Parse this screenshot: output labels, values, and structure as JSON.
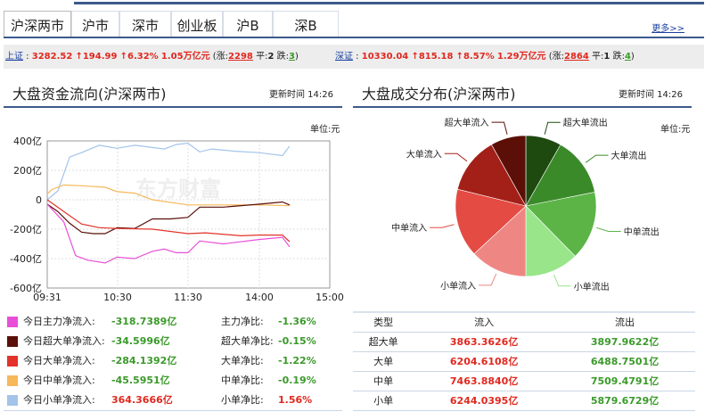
{
  "tabs": [
    "沪深两市",
    "沪市",
    "深市",
    "创业板",
    "沪B",
    "深B"
  ],
  "more": "更多>>",
  "ticker": {
    "sh": {
      "name": "上证",
      "value": "3282.52",
      "chg": "↑194.99",
      "pct": "↑6.32%",
      "amount": "1.05万亿元",
      "up_label": "涨:",
      "up": "2298",
      "flat_label": "平:",
      "flat": "2",
      "down_label": "跌:",
      "down": "3"
    },
    "sz": {
      "name": "深证",
      "value": "10330.04",
      "chg": "↑815.18",
      "pct": "↑8.57%",
      "amount": "1.29万亿元",
      "up_label": "涨:",
      "up": "2864",
      "flat_label": "平:",
      "flat": "1",
      "down_label": "跌:",
      "down": "4"
    }
  },
  "left": {
    "title": "大盘资金流向(沪深两市)",
    "updated": "更新时间 14:26",
    "unit": "单位:元",
    "legend": [
      {
        "label": "今日主力净流入:",
        "value": "-318.7389亿",
        "ratio_label": "主力净比:",
        "ratio": "-1.36%",
        "color": "#e84fd8",
        "sign": "neg"
      },
      {
        "label": "今日超大单净流入:",
        "value": "-34.5996亿",
        "ratio_label": "超大单净比:",
        "ratio": "-0.15%",
        "color": "#5a0f08",
        "sign": "neg"
      },
      {
        "label": "今日大单净流入:",
        "value": "-284.1392亿",
        "ratio_label": "大单净比:",
        "ratio": "-1.22%",
        "color": "#e3322a",
        "sign": "neg"
      },
      {
        "label": "今日中单净流入:",
        "value": "-45.5951亿",
        "ratio_label": "中单净比:",
        "ratio": "-0.19%",
        "color": "#f7b85a",
        "sign": "neg"
      },
      {
        "label": "今日小单净流入:",
        "value": "364.3666亿",
        "ratio_label": "小单净比:",
        "ratio": "1.56%",
        "color": "#a3c4ea",
        "sign": "pos"
      }
    ]
  },
  "right": {
    "title": "大盘成交分布(沪深两市)",
    "updated": "更新时间 14:26",
    "unit": "单位:元",
    "table": {
      "headers": [
        "类型",
        "流入",
        "流出"
      ],
      "rows": [
        [
          "超大单",
          "3863.3626亿",
          "3897.9622亿"
        ],
        [
          "大单",
          "6204.6108亿",
          "6488.7501亿"
        ],
        [
          "中单",
          "7463.8840亿",
          "7509.4791亿"
        ],
        [
          "小单",
          "6244.0395亿",
          "5879.6729亿"
        ]
      ]
    }
  },
  "chart_data": [
    {
      "type": "line",
      "watermark": "东方财富",
      "ylim": [
        -600,
        400
      ],
      "yticks": [
        "400亿",
        "200亿",
        "0",
        "-200亿",
        "-400亿",
        "-600亿"
      ],
      "ytick_values": [
        400,
        200,
        0,
        -200,
        -400,
        -600
      ],
      "xticks": [
        "09:31",
        "10:30",
        "11:30",
        "14:00",
        "15:00"
      ],
      "grid": true,
      "series": [
        {
          "name": "今日小单净流入",
          "color": "#a3c4ea",
          "points": [
            [
              "09:31",
              0
            ],
            [
              "09:40",
              60
            ],
            [
              "09:50",
              290
            ],
            [
              "10:00",
              320
            ],
            [
              "10:15",
              370
            ],
            [
              "10:30",
              350
            ],
            [
              "10:45",
              370
            ],
            [
              "11:00",
              355
            ],
            [
              "11:10",
              345
            ],
            [
              "11:20",
              375
            ],
            [
              "11:30",
              385
            ],
            [
              "13:10",
              325
            ],
            [
              "13:20",
              345
            ],
            [
              "13:40",
              330
            ],
            [
              "14:00",
              320
            ],
            [
              "14:20",
              300
            ],
            [
              "14:26",
              365
            ]
          ]
        },
        {
          "name": "今日中单净流入",
          "color": "#f7b85a",
          "points": [
            [
              "09:31",
              40
            ],
            [
              "09:35",
              70
            ],
            [
              "09:45",
              100
            ],
            [
              "10:00",
              95
            ],
            [
              "10:20",
              85
            ],
            [
              "10:30",
              55
            ],
            [
              "10:45",
              45
            ],
            [
              "11:00",
              0
            ],
            [
              "11:30",
              -35
            ],
            [
              "13:15",
              -35
            ],
            [
              "14:00",
              -35
            ],
            [
              "14:26",
              -40
            ]
          ]
        },
        {
          "name": "今日超大单净流入",
          "color": "#5a0f08",
          "points": [
            [
              "09:31",
              -30
            ],
            [
              "09:40",
              -80
            ],
            [
              "09:50",
              -160
            ],
            [
              "10:00",
              -220
            ],
            [
              "10:10",
              -230
            ],
            [
              "10:20",
              -230
            ],
            [
              "10:30",
              -190
            ],
            [
              "10:45",
              -195
            ],
            [
              "11:00",
              -130
            ],
            [
              "11:15",
              -130
            ],
            [
              "11:30",
              -120
            ],
            [
              "13:10",
              -50
            ],
            [
              "13:30",
              -50
            ],
            [
              "14:00",
              -30
            ],
            [
              "14:20",
              -15
            ],
            [
              "14:26",
              -35
            ]
          ]
        },
        {
          "name": "今日大单净流入",
          "color": "#e3322a",
          "points": [
            [
              "09:31",
              0
            ],
            [
              "09:45",
              -80
            ],
            [
              "10:00",
              -165
            ],
            [
              "10:15",
              -190
            ],
            [
              "10:30",
              -195
            ],
            [
              "11:00",
              -200
            ],
            [
              "11:30",
              -230
            ],
            [
              "13:15",
              -225
            ],
            [
              "13:45",
              -245
            ],
            [
              "14:00",
              -240
            ],
            [
              "14:20",
              -240
            ],
            [
              "14:26",
              -285
            ]
          ]
        },
        {
          "name": "今日主力净流入",
          "color": "#e84fd8",
          "points": [
            [
              "09:31",
              -30
            ],
            [
              "09:45",
              -150
            ],
            [
              "09:55",
              -380
            ],
            [
              "10:05",
              -410
            ],
            [
              "10:20",
              -430
            ],
            [
              "10:30",
              -390
            ],
            [
              "10:45",
              -400
            ],
            [
              "11:00",
              -350
            ],
            [
              "11:10",
              -335
            ],
            [
              "11:20",
              -360
            ],
            [
              "11:30",
              -360
            ],
            [
              "13:10",
              -280
            ],
            [
              "13:30",
              -300
            ],
            [
              "14:00",
              -270
            ],
            [
              "14:20",
              -255
            ],
            [
              "14:26",
              -320
            ]
          ]
        }
      ]
    },
    {
      "type": "pie",
      "slices": [
        {
          "label": "超大单流出",
          "value": 3897.9622,
          "color": "#1e4a10"
        },
        {
          "label": "大单流出",
          "value": 6488.7501,
          "color": "#3b8a2a"
        },
        {
          "label": "中单流出",
          "value": 7509.4791,
          "color": "#5cb447"
        },
        {
          "label": "小单流出",
          "value": 5879.6729,
          "color": "#98e58a"
        },
        {
          "label": "小单流入",
          "value": 6244.0395,
          "color": "#ee8784"
        },
        {
          "label": "中单流入",
          "value": 7463.884,
          "color": "#e34b43"
        },
        {
          "label": "大单流入",
          "value": 6204.6108,
          "color": "#a32018"
        },
        {
          "label": "超大单流入",
          "value": 3863.3626,
          "color": "#5c0f07"
        }
      ]
    }
  ]
}
